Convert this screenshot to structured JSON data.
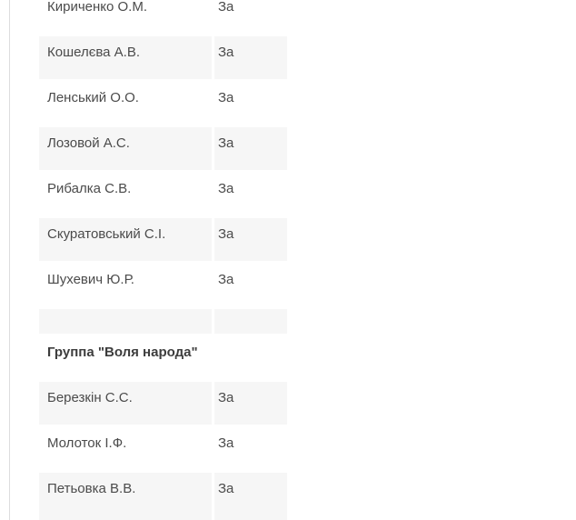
{
  "colors": {
    "row_shade": "#f6f6f6",
    "page_border": "#ddddde",
    "text": "#4b4b4b",
    "group_header_text": "#3d3d3d"
  },
  "vote_table": {
    "columns": [
      "deputy_name",
      "vote"
    ],
    "vote_for_label": "За",
    "rows": [
      {
        "type": "member",
        "name": "Кириченко О.М.",
        "vote": "За",
        "shaded": false
      },
      {
        "type": "member",
        "name": "Кошелєва А.В.",
        "vote": "За",
        "shaded": true
      },
      {
        "type": "member",
        "name": "Ленський О.О.",
        "vote": "За",
        "shaded": false
      },
      {
        "type": "member",
        "name": "Лозовой А.С.",
        "vote": "За",
        "shaded": true
      },
      {
        "type": "member",
        "name": "Рибалка С.В.",
        "vote": "За",
        "shaded": false
      },
      {
        "type": "member",
        "name": "Скуратовський С.І.",
        "vote": "За",
        "shaded": true
      },
      {
        "type": "member",
        "name": "Шухевич Ю.Р.",
        "vote": "За",
        "shaded": false
      },
      {
        "type": "spacer",
        "name": "",
        "vote": "",
        "shaded": true
      },
      {
        "type": "group_header",
        "name": "Группа \"Воля народа\"",
        "vote": "",
        "shaded": false
      },
      {
        "type": "member",
        "name": "Березкін С.С.",
        "vote": "За",
        "shaded": true
      },
      {
        "type": "member",
        "name": "Молоток І.Ф.",
        "vote": "За",
        "shaded": false
      },
      {
        "type": "member",
        "name": "Петьовка В.В.",
        "vote": "За",
        "shaded": true
      }
    ]
  }
}
